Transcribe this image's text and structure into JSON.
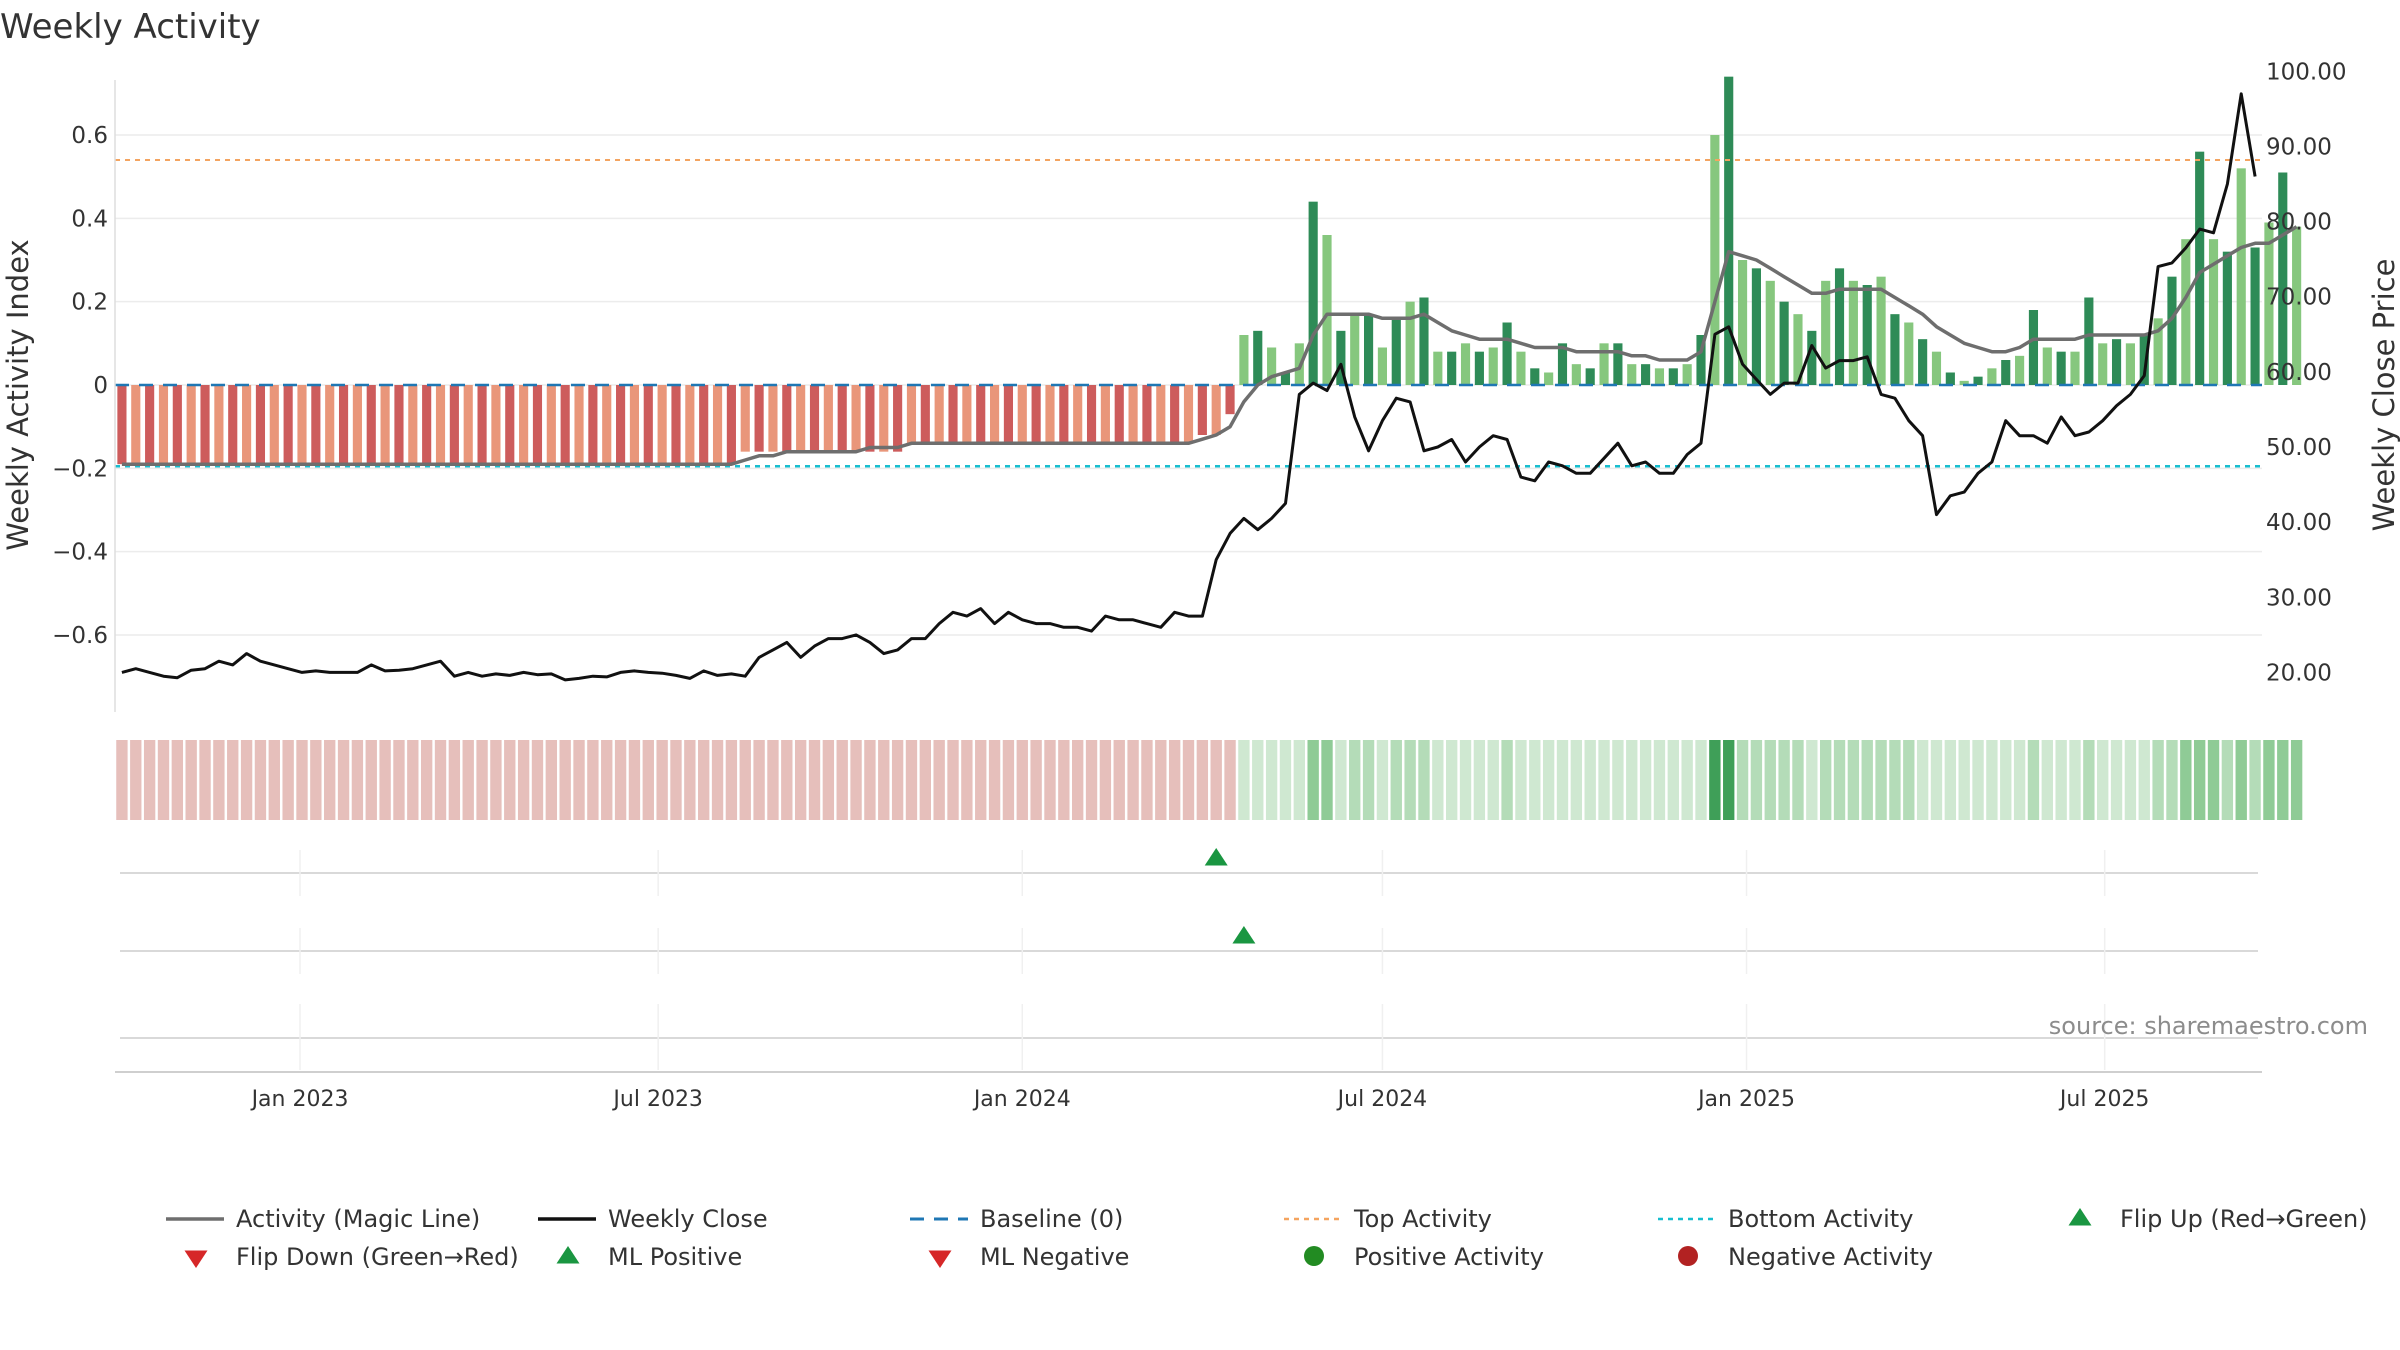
{
  "chart_data": {
    "type": "bar",
    "title": "Weekly Activity",
    "ylabel_left": "Weekly Activity Index",
    "ylabel_right": "Weekly Close Price",
    "source": "source: sharemaestro.com",
    "x_start": "2022-10-03",
    "weeks": 155,
    "x_ticks": [
      {
        "label": "Jan 2023",
        "date": "2023-01-01"
      },
      {
        "label": "Jul 2023",
        "date": "2023-07-01"
      },
      {
        "label": "Jan 2024",
        "date": "2024-01-01"
      },
      {
        "label": "Jul 2024",
        "date": "2024-07-01"
      },
      {
        "label": "Jan 2025",
        "date": "2025-01-01"
      },
      {
        "label": "Jul 2025",
        "date": "2025-07-01"
      }
    ],
    "ylim_left": [
      -0.78,
      0.78
    ],
    "yticks_left": [
      {
        "v": 0.6,
        "label": "0.6"
      },
      {
        "v": 0.4,
        "label": "0.4"
      },
      {
        "v": 0.2,
        "label": "0.2"
      },
      {
        "v": 0,
        "label": "0"
      },
      {
        "v": -0.2,
        "label": "−0.2"
      },
      {
        "v": -0.4,
        "label": "−0.4"
      },
      {
        "v": -0.6,
        "label": "−0.6"
      }
    ],
    "ylim_right": [
      15,
      101.5
    ],
    "yticks_right": [
      {
        "v": 100,
        "label": "100.00"
      },
      {
        "v": 90,
        "label": "90.00"
      },
      {
        "v": 80,
        "label": "80.00"
      },
      {
        "v": 70,
        "label": "70.00"
      },
      {
        "v": 60,
        "label": "60.00"
      },
      {
        "v": 50,
        "label": "50.00"
      },
      {
        "v": 40,
        "label": "40.00"
      },
      {
        "v": 30,
        "label": "30.00"
      },
      {
        "v": 20,
        "label": "20.00"
      }
    ],
    "top_activity": 0.54,
    "bottom_activity": -0.195,
    "activity": [
      -0.19,
      -0.19,
      -0.19,
      -0.19,
      -0.19,
      -0.19,
      -0.19,
      -0.19,
      -0.19,
      -0.19,
      -0.19,
      -0.19,
      -0.19,
      -0.19,
      -0.19,
      -0.19,
      -0.19,
      -0.19,
      -0.19,
      -0.19,
      -0.19,
      -0.19,
      -0.19,
      -0.19,
      -0.19,
      -0.19,
      -0.19,
      -0.19,
      -0.19,
      -0.19,
      -0.19,
      -0.19,
      -0.19,
      -0.19,
      -0.19,
      -0.19,
      -0.19,
      -0.19,
      -0.19,
      -0.19,
      -0.19,
      -0.19,
      -0.19,
      -0.19,
      -0.19,
      -0.16,
      -0.16,
      -0.16,
      -0.16,
      -0.16,
      -0.16,
      -0.16,
      -0.16,
      -0.16,
      -0.16,
      -0.16,
      -0.16,
      -0.14,
      -0.14,
      -0.14,
      -0.14,
      -0.14,
      -0.14,
      -0.14,
      -0.14,
      -0.14,
      -0.14,
      -0.14,
      -0.14,
      -0.14,
      -0.14,
      -0.14,
      -0.14,
      -0.14,
      -0.14,
      -0.14,
      -0.14,
      -0.14,
      -0.12,
      -0.12,
      -0.07,
      0.12,
      0.13,
      0.09,
      0.03,
      0.1,
      0.44,
      0.36,
      0.13,
      0.17,
      0.17,
      0.09,
      0.16,
      0.2,
      0.21,
      0.08,
      0.08,
      0.1,
      0.08,
      0.09,
      0.15,
      0.08,
      0.04,
      0.03,
      0.1,
      0.05,
      0.04,
      0.1,
      0.1,
      0.05,
      0.05,
      0.04,
      0.04,
      0.05,
      0.12,
      0.6,
      0.74,
      0.3,
      0.28,
      0.25,
      0.2,
      0.17,
      0.13,
      0.25,
      0.28,
      0.25,
      0.24,
      0.26,
      0.17,
      0.15,
      0.11,
      0.08,
      0.03,
      0.01,
      0.02,
      0.04,
      0.06,
      0.07,
      0.18,
      0.09,
      0.08,
      0.08,
      0.21,
      0.1,
      0.11,
      0.1,
      0.12,
      0.16,
      0.26,
      0.35,
      0.56,
      0.35,
      0.32,
      0.52,
      0.33,
      0.39,
      0.51,
      0.38
    ],
    "magic_line": [
      -0.19,
      -0.19,
      -0.19,
      -0.19,
      -0.19,
      -0.19,
      -0.19,
      -0.19,
      -0.19,
      -0.19,
      -0.19,
      -0.19,
      -0.19,
      -0.19,
      -0.19,
      -0.19,
      -0.19,
      -0.19,
      -0.19,
      -0.19,
      -0.19,
      -0.19,
      -0.19,
      -0.19,
      -0.19,
      -0.19,
      -0.19,
      -0.19,
      -0.19,
      -0.19,
      -0.19,
      -0.19,
      -0.19,
      -0.19,
      -0.19,
      -0.19,
      -0.19,
      -0.19,
      -0.19,
      -0.19,
      -0.19,
      -0.19,
      -0.19,
      -0.19,
      -0.19,
      -0.18,
      -0.17,
      -0.17,
      -0.16,
      -0.16,
      -0.16,
      -0.16,
      -0.16,
      -0.16,
      -0.15,
      -0.15,
      -0.15,
      -0.14,
      -0.14,
      -0.14,
      -0.14,
      -0.14,
      -0.14,
      -0.14,
      -0.14,
      -0.14,
      -0.14,
      -0.14,
      -0.14,
      -0.14,
      -0.14,
      -0.14,
      -0.14,
      -0.14,
      -0.14,
      -0.14,
      -0.14,
      -0.14,
      -0.13,
      -0.12,
      -0.1,
      -0.04,
      0.0,
      0.02,
      0.03,
      0.04,
      0.12,
      0.17,
      0.17,
      0.17,
      0.17,
      0.16,
      0.16,
      0.16,
      0.17,
      0.15,
      0.13,
      0.12,
      0.11,
      0.11,
      0.11,
      0.1,
      0.09,
      0.09,
      0.09,
      0.08,
      0.08,
      0.08,
      0.08,
      0.07,
      0.07,
      0.06,
      0.06,
      0.06,
      0.08,
      0.2,
      0.32,
      0.31,
      0.3,
      0.28,
      0.26,
      0.24,
      0.22,
      0.22,
      0.23,
      0.23,
      0.23,
      0.23,
      0.21,
      0.19,
      0.17,
      0.14,
      0.12,
      0.1,
      0.09,
      0.08,
      0.08,
      0.09,
      0.11,
      0.11,
      0.11,
      0.11,
      0.12,
      0.12,
      0.12,
      0.12,
      0.12,
      0.13,
      0.16,
      0.21,
      0.27,
      0.29,
      0.31,
      0.33,
      0.34,
      0.34,
      0.36,
      0.38
    ],
    "weekly_close": [
      20.0,
      20.5,
      20.0,
      19.5,
      19.3,
      20.3,
      20.5,
      21.5,
      21.0,
      22.5,
      21.5,
      21.0,
      20.5,
      20.0,
      20.2,
      20.0,
      20.0,
      20.0,
      21.0,
      20.2,
      20.3,
      20.5,
      21.0,
      21.5,
      19.5,
      20.0,
      19.5,
      19.8,
      19.6,
      20.0,
      19.7,
      19.8,
      19.0,
      19.2,
      19.5,
      19.4,
      20.0,
      20.2,
      20.0,
      19.9,
      19.6,
      19.2,
      20.2,
      19.6,
      19.8,
      19.5,
      22.0,
      23.0,
      24.0,
      22.0,
      23.5,
      24.5,
      24.5,
      25.0,
      24.0,
      22.5,
      23.0,
      24.5,
      24.5,
      26.5,
      28.0,
      27.5,
      28.5,
      26.5,
      28.0,
      27.0,
      26.5,
      26.5,
      26.0,
      26.0,
      25.5,
      27.5,
      27.0,
      27.0,
      26.5,
      26.0,
      28.0,
      27.5,
      27.5,
      35.0,
      38.5,
      40.5,
      39.0,
      40.5,
      42.5,
      57.0,
      58.5,
      57.5,
      61.0,
      54.0,
      49.5,
      53.5,
      56.5,
      56.0,
      49.5,
      50.0,
      51.0,
      48.0,
      50.0,
      51.5,
      51.0,
      46.0,
      45.5,
      48.0,
      47.5,
      46.5,
      46.5,
      48.5,
      50.5,
      47.5,
      48.0,
      46.5,
      46.5,
      49.0,
      50.5,
      65.0,
      66.0,
      61.0,
      59.0,
      57.0,
      58.5,
      58.5,
      63.5,
      60.5,
      61.5,
      61.5,
      62.0,
      57.0,
      56.5,
      53.5,
      51.5,
      41.0,
      43.5,
      44.0,
      46.5,
      48.0,
      53.5,
      51.5,
      51.5,
      50.5,
      54.0,
      51.5,
      52.0,
      53.5,
      55.5,
      57.0,
      59.5,
      74.0,
      74.5,
      76.5,
      79.0,
      78.5,
      85.0,
      97.0,
      86.0
    ],
    "ml_positive_week": 81,
    "flip_up_week": 79,
    "legend": [
      {
        "label": "Activity (Magic Line)",
        "marker": "solid-line",
        "color": "#6e6e6e"
      },
      {
        "label": "Weekly Close",
        "marker": "solid-line",
        "color": "#111111"
      },
      {
        "label": "Baseline (0)",
        "marker": "dashed-line",
        "color": "#1f77b4"
      },
      {
        "label": "Top Activity",
        "marker": "dotted-line",
        "color": "#f4a460"
      },
      {
        "label": "Bottom Activity",
        "marker": "dotted-line",
        "color": "#17becf"
      },
      {
        "label": "Flip Up (Red→Green)",
        "marker": "triangle-up",
        "color": "#1a9641"
      },
      {
        "label": "Flip Down (Green→Red)",
        "marker": "triangle-down",
        "color": "#d62728"
      },
      {
        "label": "ML Positive",
        "marker": "triangle-up",
        "color": "#1a9641"
      },
      {
        "label": "ML Negative",
        "marker": "triangle-down",
        "color": "#d62728"
      },
      {
        "label": "Positive Activity",
        "marker": "circle",
        "color": "#228b22"
      },
      {
        "label": "Negative Activity",
        "marker": "circle",
        "color": "#b22222"
      }
    ],
    "colors": {
      "bar_pos_dark": "#2e8b57",
      "bar_pos_light": "#86c77e",
      "bar_neg_dark": "#cd5c5c",
      "bar_neg_light": "#e9967a",
      "baseline": "#1f77b4",
      "top_line": "#f4a460",
      "bottom_line": "#17becf",
      "magic_line": "#6e6e6e",
      "close_line": "#111111",
      "marker_up": "#1a9641",
      "strip_neg": "#e6bfbb",
      "strip_pos_1": "#cfe8d1",
      "strip_pos_2": "#b4dcb8",
      "strip_pos_3": "#8fcb96",
      "strip_pos_4": "#3f9f58"
    }
  }
}
